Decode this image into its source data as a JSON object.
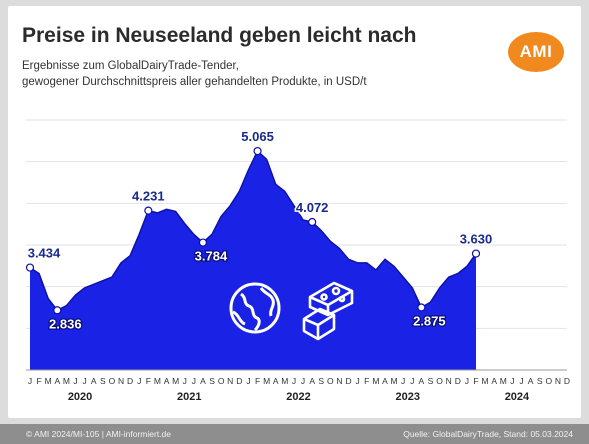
{
  "header": {
    "title": "Preise in Neuseeland geben leicht nach",
    "subtitle_line1": "Ergebnisse zum GlobalDairyTrade-Tender,",
    "subtitle_line2": "gewogener Durchschnittspreis aller gehandelten Produkte, in USD/t",
    "logo_text": "AMI"
  },
  "footer": {
    "left": "© AMI 2024/MI-105 | AMI-informiert.de",
    "right": "Quelle: GlobalDairyTrade, Stand: 05.03.2024"
  },
  "colors": {
    "area_fill": "#1a22e6",
    "area_line": "#0c12a8",
    "label_color": "#1a2a8c",
    "logo": "#f08a1e"
  },
  "icons": [
    "globe-icon",
    "cheese-and-butter-icon"
  ],
  "chart_data": {
    "type": "area",
    "title": "Preise in Neuseeland geben leicht nach",
    "xlabel": "",
    "ylabel": "",
    "ylim": [
      2000,
      5500
    ],
    "month_tick_labels": [
      "J",
      "F",
      "M",
      "A",
      "M",
      "J",
      "J",
      "A",
      "S",
      "O",
      "N",
      "D"
    ],
    "years": [
      "2020",
      "2021",
      "2022",
      "2023",
      "2024"
    ],
    "x_start": "2020-01",
    "x_end": "2024-12",
    "grid": "horizontal",
    "series": [
      {
        "name": "",
        "points": [
          [
            "2020-01",
            3434
          ],
          [
            "2020-02",
            3350
          ],
          [
            "2020-03",
            3000
          ],
          [
            "2020-04",
            2836
          ],
          [
            "2020-05",
            2900
          ],
          [
            "2020-06",
            3050
          ],
          [
            "2020-07",
            3150
          ],
          [
            "2020-08",
            3200
          ],
          [
            "2020-09",
            3250
          ],
          [
            "2020-10",
            3300
          ],
          [
            "2020-11",
            3500
          ],
          [
            "2020-12",
            3600
          ],
          [
            "2021-01",
            3900
          ],
          [
            "2021-02",
            4231
          ],
          [
            "2021-03",
            4200
          ],
          [
            "2021-04",
            4250
          ],
          [
            "2021-05",
            4220
          ],
          [
            "2021-06",
            4050
          ],
          [
            "2021-07",
            3900
          ],
          [
            "2021-08",
            3784
          ],
          [
            "2021-09",
            3900
          ],
          [
            "2021-10",
            4150
          ],
          [
            "2021-11",
            4300
          ],
          [
            "2021-12",
            4500
          ],
          [
            "2022-01",
            4800
          ],
          [
            "2022-02",
            5065
          ],
          [
            "2022-03",
            4950
          ],
          [
            "2022-04",
            4600
          ],
          [
            "2022-05",
            4500
          ],
          [
            "2022-06",
            4300
          ],
          [
            "2022-07",
            4100
          ],
          [
            "2022-08",
            4072
          ],
          [
            "2022-09",
            3950
          ],
          [
            "2022-10",
            3800
          ],
          [
            "2022-11",
            3700
          ],
          [
            "2022-12",
            3550
          ],
          [
            "2023-01",
            3500
          ],
          [
            "2023-02",
            3500
          ],
          [
            "2023-03",
            3400
          ],
          [
            "2023-04",
            3550
          ],
          [
            "2023-05",
            3450
          ],
          [
            "2023-06",
            3300
          ],
          [
            "2023-07",
            3150
          ],
          [
            "2023-08",
            2875
          ],
          [
            "2023-09",
            2950
          ],
          [
            "2023-10",
            3150
          ],
          [
            "2023-11",
            3300
          ],
          [
            "2023-12",
            3350
          ],
          [
            "2024-01",
            3450
          ],
          [
            "2024-02",
            3630
          ]
        ]
      }
    ],
    "labels": [
      {
        "x": "2020-01",
        "value": 3434,
        "text": "3.434",
        "style": "outside"
      },
      {
        "x": "2020-04",
        "value": 2836,
        "text": "2.836",
        "style": "inside"
      },
      {
        "x": "2021-02",
        "value": 4231,
        "text": "4.231",
        "style": "outside"
      },
      {
        "x": "2021-08",
        "value": 3784,
        "text": "3.784",
        "style": "inside"
      },
      {
        "x": "2022-02",
        "value": 5065,
        "text": "5.065",
        "style": "outside"
      },
      {
        "x": "2022-08",
        "value": 4072,
        "text": "4.072",
        "style": "outside"
      },
      {
        "x": "2023-08",
        "value": 2875,
        "text": "2.875",
        "style": "inside"
      },
      {
        "x": "2024-02",
        "value": 3630,
        "text": "3.630",
        "style": "outside"
      }
    ]
  }
}
